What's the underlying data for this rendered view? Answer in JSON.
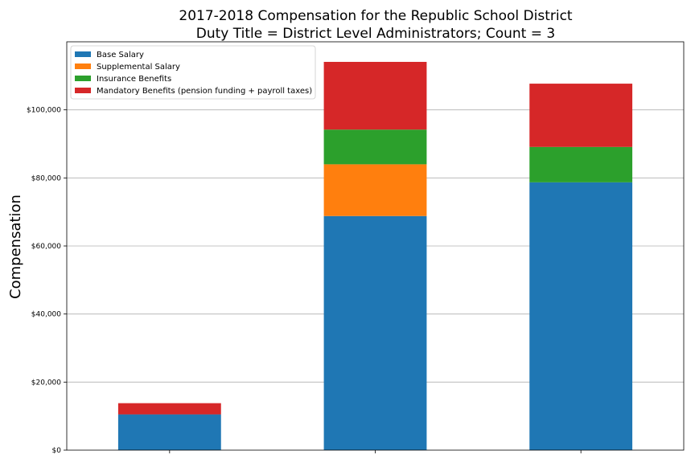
{
  "chart_data": {
    "type": "bar",
    "stacked": true,
    "title": "2017-2018 Compensation for the Republic School District",
    "subtitle": "Duty Title = District Level Administrators; Count = 3",
    "xlabel": "",
    "ylabel": "Compensation",
    "ylim": [
      0,
      120000
    ],
    "yticks": [
      0,
      20000,
      40000,
      60000,
      80000,
      100000
    ],
    "ytick_labels": [
      "$0",
      "$20,000",
      "$40,000",
      "$60,000",
      "$80,000",
      "$100,000"
    ],
    "grid": "y",
    "legend": "top-left",
    "categories": [
      "",
      "",
      ""
    ],
    "series": [
      {
        "name": "Base Salary",
        "color": "#1f77b4",
        "values": [
          10500,
          68800,
          78700
        ]
      },
      {
        "name": "Supplemental Salary",
        "color": "#ff7f0e",
        "values": [
          0,
          15200,
          0
        ]
      },
      {
        "name": "Insurance Benefits",
        "color": "#2ca02c",
        "values": [
          0,
          10200,
          10400
        ]
      },
      {
        "name": "Mandatory Benefits (pension funding + payroll taxes)",
        "color": "#d62728",
        "values": [
          3300,
          19900,
          18600
        ]
      }
    ]
  }
}
